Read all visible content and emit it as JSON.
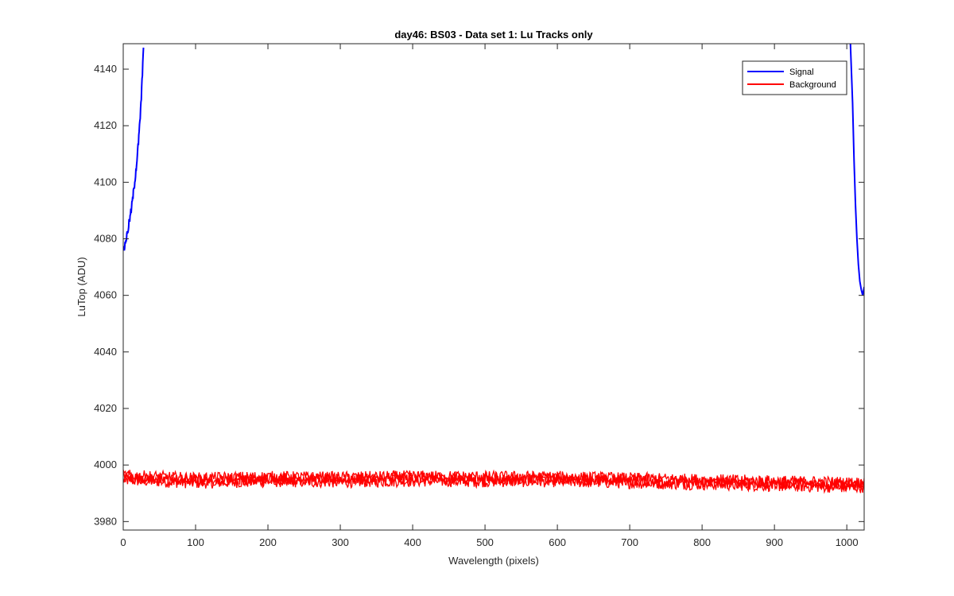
{
  "chart_data": {
    "type": "line",
    "title": "day46: BS03 - Data set 1: Lu Tracks only",
    "xlabel": "Wavelength (pixels)",
    "ylabel": "LuTop (ADU)",
    "xlim": [
      0,
      1024
    ],
    "ylim": [
      3977,
      4149
    ],
    "x_ticks": [
      0,
      100,
      200,
      300,
      400,
      500,
      600,
      700,
      800,
      900,
      1000
    ],
    "y_ticks": [
      3980,
      4000,
      4020,
      4040,
      4060,
      4080,
      4100,
      4120,
      4140
    ],
    "grid": false,
    "legend_position": "top-right",
    "series": [
      {
        "name": "Signal",
        "color": "#0000ff",
        "segments": [
          {
            "x": [
              1,
              3,
              5,
              7,
              9,
              11,
              13,
              15,
              17,
              19,
              21,
              23,
              25,
              27,
              28
            ],
            "y": [
              4076,
              4079,
              4081,
              4084,
              4087,
              4090,
              4094,
              4098,
              4103,
              4108,
              4114,
              4121,
              4130,
              4141,
              4149
            ]
          },
          {
            "x": [
              1005,
              1008,
              1010,
              1012,
              1014,
              1016,
              1018,
              1020,
              1022,
              1024
            ],
            "y": [
              4149,
              4128,
              4108,
              4092,
              4080,
              4071,
              4065,
              4062,
              4060,
              4063
            ]
          }
        ]
      },
      {
        "name": "Background",
        "color": "#ff0000",
        "band": {
          "x": [
            0,
            100,
            200,
            300,
            400,
            500,
            600,
            700,
            800,
            900,
            1000,
            1024
          ],
          "mean": [
            3995.5,
            3994.5,
            3995,
            3994.8,
            3995.2,
            3995,
            3995,
            3994.5,
            3994,
            3993.5,
            3993,
            3993
          ],
          "spread": [
            2.5,
            2.5,
            2.5,
            2.5,
            2.5,
            2.5,
            2.5,
            2.5,
            2.5,
            2.5,
            2.5,
            2.5
          ]
        }
      }
    ]
  }
}
